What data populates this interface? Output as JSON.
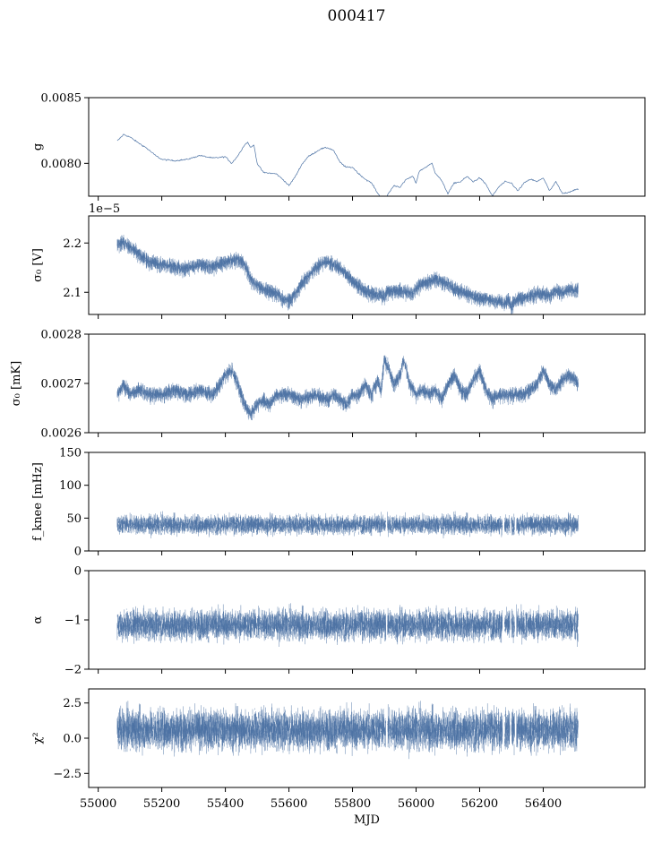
{
  "title": "000417",
  "accent_color": "#4c72a4",
  "chart_data": [
    {
      "type": "line",
      "ylabel": "g",
      "ylim": [
        0.00775,
        0.0085
      ],
      "yticks": [
        {
          "value": 0.008,
          "label": "0.0080"
        },
        {
          "value": 0.0085,
          "label": "0.0085"
        }
      ],
      "offset_label": "",
      "xlim": [
        54970,
        56720
      ],
      "show_xticklabels": false,
      "series": [
        {
          "style": "line",
          "x": [
            55060,
            55080,
            55100,
            55130,
            55150,
            55180,
            55200,
            55240,
            55280,
            55320,
            55360,
            55400,
            55420,
            55440,
            55460,
            55470,
            55480,
            55490,
            55500,
            55520,
            55560,
            55580,
            55600,
            55620,
            55640,
            55660,
            55680,
            55700,
            55720,
            55740,
            55760,
            55780,
            55800,
            55820,
            55840,
            55860,
            55880,
            55900,
            55910,
            55930,
            55950,
            55970,
            55990,
            56000,
            56010,
            56030,
            56050,
            56060,
            56080,
            56100,
            56120,
            56140,
            56160,
            56180,
            56200,
            56220,
            56240,
            56260,
            56280,
            56300,
            56320,
            56340,
            56360,
            56380,
            56400,
            56420,
            56440,
            56460,
            56480,
            56500,
            56510
          ],
          "y": [
            0.00817,
            0.00822,
            0.0082,
            0.00815,
            0.00812,
            0.00806,
            0.00803,
            0.00802,
            0.00803,
            0.00806,
            0.00804,
            0.00805,
            0.008,
            0.00806,
            0.00814,
            0.00816,
            0.00812,
            0.00814,
            0.008,
            0.00793,
            0.00792,
            0.00788,
            0.00783,
            0.0079,
            0.00799,
            0.00805,
            0.00808,
            0.00811,
            0.00812,
            0.0081,
            0.00801,
            0.00797,
            0.00797,
            0.00792,
            0.00788,
            0.00785,
            0.00777,
            0.0077,
            0.00776,
            0.00783,
            0.00782,
            0.00788,
            0.0079,
            0.00785,
            0.00794,
            0.00797,
            0.008,
            0.00793,
            0.00787,
            0.00777,
            0.00785,
            0.00786,
            0.0079,
            0.00786,
            0.00789,
            0.00784,
            0.00775,
            0.00782,
            0.00786,
            0.00785,
            0.00779,
            0.00785,
            0.00788,
            0.00786,
            0.00789,
            0.00779,
            0.00786,
            0.00777,
            0.00778,
            0.0078,
            0.0078
          ]
        }
      ]
    },
    {
      "type": "line",
      "ylabel": "σ₀ [V]",
      "ylim": [
        2.055,
        2.255
      ],
      "yticks": [
        {
          "value": 2.1,
          "label": "2.1"
        },
        {
          "value": 2.2,
          "label": "2.2"
        }
      ],
      "offset_label": "1e−5",
      "xlim": [
        54970,
        56720
      ],
      "show_xticklabels": false,
      "series": [
        {
          "style": "band",
          "x": [
            55060,
            55080,
            55100,
            55130,
            55160,
            55200,
            55240,
            55280,
            55320,
            55360,
            55400,
            55440,
            55460,
            55480,
            55500,
            55520,
            55560,
            55580,
            55600,
            55620,
            55640,
            55660,
            55680,
            55700,
            55720,
            55740,
            55760,
            55780,
            55800,
            55820,
            55840,
            55860,
            55880,
            55900,
            55910,
            55930,
            55960,
            55990,
            56000,
            56020,
            56040,
            56060,
            56080,
            56100,
            56120,
            56140,
            56160,
            56180,
            56200,
            56220,
            56240,
            56260,
            56280,
            56290,
            56300,
            56310,
            56320,
            56340,
            56360,
            56380,
            56400,
            56420,
            56440,
            56460,
            56480,
            56500,
            56510
          ],
          "y": [
            2.2,
            2.205,
            2.195,
            2.18,
            2.165,
            2.16,
            2.155,
            2.15,
            2.16,
            2.155,
            2.165,
            2.17,
            2.16,
            2.13,
            2.115,
            2.11,
            2.1,
            2.09,
            2.085,
            2.1,
            2.12,
            2.135,
            2.15,
            2.16,
            2.165,
            2.16,
            2.15,
            2.14,
            2.125,
            2.115,
            2.105,
            2.1,
            2.098,
            2.095,
            2.105,
            2.105,
            2.105,
            2.1,
            2.11,
            2.12,
            2.125,
            2.13,
            2.125,
            2.12,
            2.11,
            2.105,
            2.1,
            2.095,
            2.09,
            2.09,
            2.085,
            2.085,
            2.08,
            2.09,
            2.075,
            2.085,
            2.09,
            2.09,
            2.095,
            2.1,
            2.1,
            2.095,
            2.105,
            2.1,
            2.11,
            2.105,
            2.11
          ],
          "spread": 0.022
        }
      ]
    },
    {
      "type": "line",
      "ylabel": "σ₀ [mK]",
      "ylim": [
        0.0026,
        0.0028
      ],
      "yticks": [
        {
          "value": 0.0026,
          "label": "0.0026"
        },
        {
          "value": 0.0027,
          "label": "0.0027"
        },
        {
          "value": 0.0028,
          "label": "0.0028"
        }
      ],
      "offset_label": "",
      "xlim": [
        54970,
        56720
      ],
      "show_xticklabels": false,
      "series": [
        {
          "style": "band",
          "x": [
            55060,
            55080,
            55100,
            55130,
            55160,
            55200,
            55240,
            55280,
            55320,
            55360,
            55400,
            55420,
            55440,
            55460,
            55480,
            55500,
            55520,
            55540,
            55560,
            55600,
            55640,
            55680,
            55720,
            55740,
            55760,
            55780,
            55800,
            55820,
            55840,
            55860,
            55880,
            55890,
            55900,
            55910,
            55930,
            55950,
            55960,
            55970,
            55980,
            56000,
            56020,
            56040,
            56060,
            56080,
            56100,
            56120,
            56140,
            56160,
            56180,
            56200,
            56220,
            56240,
            56260,
            56280,
            56290,
            56300,
            56310,
            56320,
            56340,
            56360,
            56380,
            56400,
            56420,
            56440,
            56460,
            56480,
            56500,
            56510
          ],
          "y": [
            0.00268,
            0.0027,
            0.00268,
            0.00269,
            0.00268,
            0.00268,
            0.00269,
            0.00268,
            0.00269,
            0.00268,
            0.00272,
            0.00273,
            0.0027,
            0.00266,
            0.00264,
            0.00266,
            0.00267,
            0.00266,
            0.00268,
            0.00268,
            0.00267,
            0.00268,
            0.00267,
            0.00268,
            0.00267,
            0.00266,
            0.00268,
            0.00268,
            0.0027,
            0.00268,
            0.00271,
            0.00269,
            0.00275,
            0.00274,
            0.0027,
            0.00272,
            0.00275,
            0.00273,
            0.0027,
            0.00268,
            0.00269,
            0.00268,
            0.00269,
            0.00267,
            0.0027,
            0.00272,
            0.00269,
            0.00268,
            0.00271,
            0.00273,
            0.00269,
            0.00267,
            0.00268,
            0.00268,
            0.00268,
            0.00268,
            0.00268,
            0.00268,
            0.00268,
            0.00269,
            0.0027,
            0.00273,
            0.0027,
            0.00269,
            0.00271,
            0.00272,
            0.00271,
            0.0027
          ],
          "spread": 2.2e-05
        }
      ]
    },
    {
      "type": "line",
      "ylabel": "f_knee [mHz]",
      "ylim": [
        0,
        150
      ],
      "yticks": [
        {
          "value": 0,
          "label": "0"
        },
        {
          "value": 50,
          "label": "50"
        },
        {
          "value": 100,
          "label": "100"
        },
        {
          "value": 150,
          "label": "150"
        }
      ],
      "offset_label": "",
      "xlim": [
        54970,
        56720
      ],
      "show_xticklabels": false,
      "series": [
        {
          "style": "noise",
          "x_start": 55060,
          "x_end": 56510,
          "mean": 40,
          "spread": 14,
          "gaps": [
            [
              55905,
              55910
            ],
            [
              56272,
              56278
            ],
            [
              56295,
              56300
            ],
            [
              56310,
              56316
            ]
          ]
        }
      ]
    },
    {
      "type": "line",
      "ylabel": "α",
      "ylim": [
        -2,
        0
      ],
      "yticks": [
        {
          "value": -2,
          "label": "−2"
        },
        {
          "value": -1,
          "label": "−1"
        },
        {
          "value": 0,
          "label": "0"
        }
      ],
      "offset_label": "",
      "xlim": [
        54970,
        56720
      ],
      "show_xticklabels": false,
      "series": [
        {
          "style": "noise",
          "x_start": 55060,
          "x_end": 56510,
          "mean": -1.1,
          "spread": 0.3,
          "gaps": [
            [
              55905,
              55910
            ],
            [
              56272,
              56278
            ],
            [
              56295,
              56300
            ],
            [
              56310,
              56316
            ]
          ]
        }
      ]
    },
    {
      "type": "line",
      "ylabel": "χ²",
      "ylim": [
        -3.5,
        3.5
      ],
      "yticks": [
        {
          "value": -2.5,
          "label": "−2.5"
        },
        {
          "value": 0.0,
          "label": "0.0"
        },
        {
          "value": 2.5,
          "label": "2.5"
        }
      ],
      "offset_label": "",
      "xlim": [
        54970,
        56720
      ],
      "xticks": [
        {
          "value": 55000,
          "label": "55000"
        },
        {
          "value": 55200,
          "label": "55200"
        },
        {
          "value": 55400,
          "label": "55400"
        },
        {
          "value": 55600,
          "label": "55600"
        },
        {
          "value": 55800,
          "label": "55800"
        },
        {
          "value": 56000,
          "label": "56000"
        },
        {
          "value": 56200,
          "label": "56200"
        },
        {
          "value": 56400,
          "label": "56400"
        }
      ],
      "xlabel": "MJD",
      "show_xticklabels": true,
      "series": [
        {
          "style": "noise",
          "x_start": 55060,
          "x_end": 56510,
          "mean": 0.6,
          "spread": 1.4,
          "gaps": [
            [
              55905,
              55910
            ],
            [
              56272,
              56278
            ],
            [
              56295,
              56300
            ],
            [
              56310,
              56316
            ]
          ]
        }
      ]
    }
  ]
}
